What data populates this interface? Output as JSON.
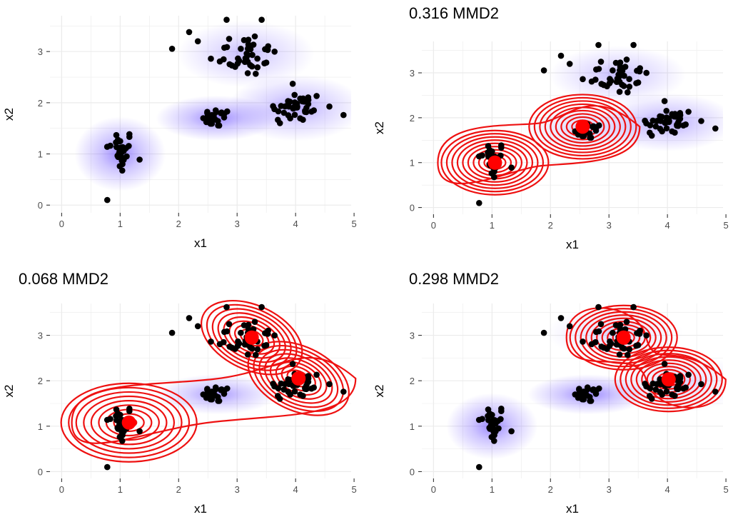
{
  "colors": {
    "panel_bg": "#ffffff",
    "grid": "#ebebeb",
    "panel_border": "#333333",
    "density": "#5a3bff",
    "points": "#000000",
    "contours": "#ee1111",
    "centers": "#ff0000"
  },
  "chart_data": [
    {
      "type": "scatter",
      "title": "",
      "xlabel": "x1",
      "ylabel": "x2",
      "xlim": [
        -0.2,
        4.95
      ],
      "ylim": [
        -0.15,
        3.7
      ],
      "xticks": [
        0,
        1,
        2,
        3,
        4,
        5
      ],
      "yticks": [
        0,
        1,
        2,
        3
      ],
      "grid": true,
      "centers": [],
      "kde": [
        {
          "x": 1.0,
          "y": 1.0,
          "sx": 0.3,
          "sy": 0.28,
          "w": 0.8
        },
        {
          "x": 2.65,
          "y": 1.7,
          "sx": 0.4,
          "sy": 0.17,
          "w": 0.8
        },
        {
          "x": 3.15,
          "y": 2.95,
          "sx": 0.45,
          "sy": 0.25,
          "w": 0.45
        },
        {
          "x": 4.0,
          "y": 1.9,
          "sx": 0.45,
          "sy": 0.25,
          "w": 0.6
        }
      ]
    },
    {
      "type": "scatter",
      "title": "0.316 MMD2",
      "xlabel": "x1",
      "ylabel": "x2",
      "xlim": [
        -0.2,
        4.95
      ],
      "ylim": [
        -0.15,
        3.7
      ],
      "xticks": [
        0,
        1,
        2,
        3,
        4,
        5
      ],
      "yticks": [
        0,
        1,
        2,
        3
      ],
      "grid": true,
      "centers": [
        {
          "x": 1.05,
          "y": 1.0
        },
        {
          "x": 2.55,
          "y": 1.8
        }
      ],
      "kde": [
        {
          "x": 2.65,
          "y": 1.75,
          "sx": 0.45,
          "sy": 0.2,
          "w": 0.35
        },
        {
          "x": 3.15,
          "y": 2.95,
          "sx": 0.45,
          "sy": 0.25,
          "w": 0.45
        },
        {
          "x": 4.0,
          "y": 1.9,
          "sx": 0.45,
          "sy": 0.25,
          "w": 0.6
        }
      ]
    },
    {
      "type": "scatter",
      "title": "0.068 MMD2",
      "xlabel": "x1",
      "ylabel": "x2",
      "xlim": [
        -0.2,
        4.95
      ],
      "ylim": [
        -0.15,
        3.7
      ],
      "xticks": [
        0,
        1,
        2,
        3,
        4,
        5
      ],
      "yticks": [
        0,
        1,
        2,
        3
      ],
      "grid": true,
      "centers": [
        {
          "x": 1.15,
          "y": 1.08
        },
        {
          "x": 3.25,
          "y": 2.95
        },
        {
          "x": 4.05,
          "y": 2.05
        }
      ],
      "kde": [
        {
          "x": 2.65,
          "y": 1.7,
          "sx": 0.4,
          "sy": 0.17,
          "w": 0.7
        }
      ]
    },
    {
      "type": "scatter",
      "title": "0.298 MMD2",
      "xlabel": "x1",
      "ylabel": "x2",
      "xlim": [
        -0.2,
        4.95
      ],
      "ylim": [
        -0.15,
        3.7
      ],
      "xticks": [
        0,
        1,
        2,
        3,
        4,
        5
      ],
      "yticks": [
        0,
        1,
        2,
        3
      ],
      "grid": true,
      "centers": [
        {
          "x": 3.25,
          "y": 2.95
        },
        {
          "x": 4.02,
          "y": 2.03
        }
      ],
      "kde": [
        {
          "x": 1.0,
          "y": 1.0,
          "sx": 0.3,
          "sy": 0.28,
          "w": 0.8
        },
        {
          "x": 2.65,
          "y": 1.7,
          "sx": 0.4,
          "sy": 0.17,
          "w": 0.8
        },
        {
          "x": 3.1,
          "y": 3.05,
          "sx": 0.45,
          "sy": 0.22,
          "w": 0.3
        },
        {
          "x": 4.2,
          "y": 1.95,
          "sx": 0.45,
          "sy": 0.25,
          "w": 0.3
        }
      ]
    }
  ]
}
